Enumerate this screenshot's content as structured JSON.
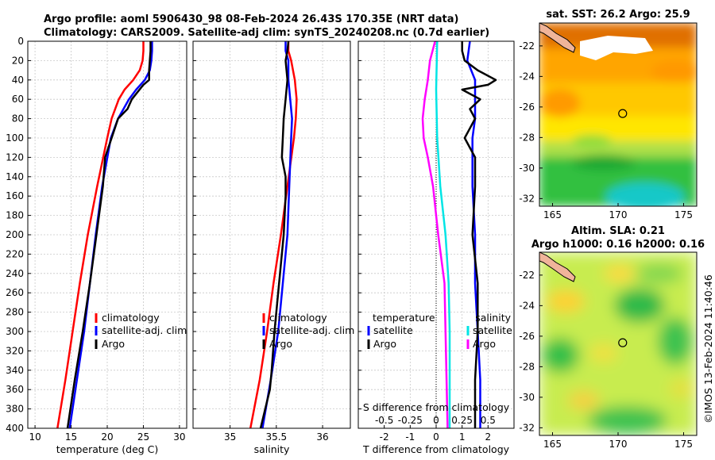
{
  "header": {
    "line1": "Argo profile: aoml 5906430_98 08-Feb-2024 26.43S 170.35E (NRT data)",
    "line2": "Climatology: CARS2009. Satellite-adj clim: synTS_20240208.nc (0.7d earlier)"
  },
  "colors": {
    "climatology": "#ff0000",
    "satellite": "#0000ff",
    "argo": "#000000",
    "cyan": "#00e5e5",
    "magenta": "#ff00ff"
  },
  "chart_data": [
    {
      "type": "line",
      "id": "temperature",
      "xlabel": "temperature (deg C)",
      "ylabel": "",
      "xlim": [
        9,
        31
      ],
      "ylim": [
        400,
        0
      ],
      "xticks": [
        10,
        15,
        20,
        25,
        30
      ],
      "yticks": [
        0,
        20,
        40,
        60,
        80,
        100,
        120,
        140,
        160,
        180,
        200,
        220,
        240,
        260,
        280,
        300,
        320,
        340,
        360,
        380,
        400
      ],
      "legend": [
        "climatology",
        "satellite-adj. clim",
        "Argo"
      ],
      "series": [
        {
          "name": "climatology",
          "color": "#ff0000",
          "depth": [
            0,
            10,
            20,
            30,
            40,
            50,
            60,
            80,
            100,
            150,
            200,
            250,
            300,
            350,
            400
          ],
          "values": [
            25,
            25,
            24.9,
            24.5,
            23.6,
            22.4,
            21.6,
            20.6,
            20,
            18.6,
            17.3,
            16.2,
            15.2,
            14.2,
            13.1
          ]
        },
        {
          "name": "satellite-adj. clim",
          "color": "#0000ff",
          "depth": [
            0,
            10,
            20,
            30,
            40,
            50,
            60,
            80,
            100,
            150,
            200,
            250,
            300,
            350,
            400
          ],
          "values": [
            26.2,
            26.2,
            26.1,
            25.9,
            25.2,
            24,
            23,
            21.5,
            20.5,
            19.3,
            18.4,
            17.6,
            16.8,
            15.8,
            14.8
          ]
        },
        {
          "name": "Argo",
          "color": "#000000",
          "depth": [
            0,
            10,
            20,
            30,
            40,
            45,
            60,
            70,
            80,
            100,
            120,
            150,
            200,
            250,
            300,
            350,
            400
          ],
          "values": [
            26,
            26,
            25.9,
            25.8,
            25.8,
            25,
            23.4,
            22.8,
            21.5,
            20.6,
            19.7,
            19.4,
            18.5,
            17.6,
            16.6,
            15.5,
            14.5
          ]
        }
      ]
    },
    {
      "type": "line",
      "id": "salinity",
      "xlabel": "salinity",
      "ylabel": "",
      "xlim": [
        34.6,
        36.3
      ],
      "ylim": [
        400,
        0
      ],
      "xticks": [
        35,
        35.5,
        36
      ],
      "legend": [
        "climatology",
        "satellite-adj. clim",
        "Argo"
      ],
      "series": [
        {
          "name": "climatology",
          "color": "#ff0000",
          "depth": [
            0,
            10,
            20,
            40,
            60,
            80,
            100,
            150,
            200,
            250,
            300,
            350,
            400
          ],
          "values": [
            35.63,
            35.63,
            35.66,
            35.7,
            35.72,
            35.71,
            35.69,
            35.62,
            35.55,
            35.47,
            35.4,
            35.32,
            35.22
          ]
        },
        {
          "name": "satellite-adj. clim",
          "color": "#0000ff",
          "depth": [
            0,
            10,
            20,
            40,
            60,
            80,
            100,
            150,
            200,
            250,
            300,
            350,
            400
          ],
          "values": [
            35.6,
            35.6,
            35.63,
            35.63,
            35.65,
            35.67,
            35.66,
            35.64,
            35.62,
            35.57,
            35.52,
            35.44,
            35.35
          ]
        },
        {
          "name": "Argo",
          "color": "#000000",
          "depth": [
            0,
            10,
            20,
            40,
            60,
            80,
            100,
            120,
            140,
            160,
            200,
            250,
            300,
            340,
            360,
            400
          ],
          "values": [
            35.63,
            35.62,
            35.6,
            35.62,
            35.6,
            35.58,
            35.57,
            35.56,
            35.6,
            35.6,
            35.58,
            35.53,
            35.48,
            35.45,
            35.43,
            35.33
          ]
        }
      ]
    },
    {
      "type": "line",
      "id": "differences",
      "xlabel": "T difference from climatology",
      "xlabel_top": "S difference from climatology",
      "xlim": [
        -3,
        3
      ],
      "ylim": [
        400,
        0
      ],
      "xticks": [
        -2,
        -1,
        0,
        1,
        2
      ],
      "xticks_top": [
        -0.5,
        -0.25,
        0,
        0.25,
        0.5
      ],
      "legend_left_title": "temperature",
      "legend_right_title": "salinity",
      "legend_left": [
        "satellite",
        "Argo"
      ],
      "legend_right": [
        "satellite",
        "Argo"
      ],
      "series": [
        {
          "name": "T satellite",
          "color": "#0000ff",
          "depth": [
            0,
            20,
            40,
            60,
            80,
            100,
            150,
            200,
            250,
            300,
            350,
            400
          ],
          "values": [
            1.3,
            1.2,
            1.5,
            1.5,
            1.5,
            1.4,
            1.4,
            1.5,
            1.5,
            1.6,
            1.7,
            1.7
          ]
        },
        {
          "name": "T Argo",
          "color": "#000000",
          "depth": [
            0,
            10,
            20,
            30,
            40,
            45,
            50,
            60,
            70,
            80,
            90,
            100,
            120,
            150,
            200,
            250,
            300,
            350,
            400
          ],
          "values": [
            1,
            1,
            1.1,
            1.6,
            2.3,
            2,
            1,
            1.7,
            1.3,
            1.5,
            1.3,
            1.1,
            1.5,
            1.5,
            1.4,
            1.6,
            1.6,
            1.5,
            1.5
          ]
        },
        {
          "name": "S satellite",
          "color": "#00e5e5",
          "depth": [
            0,
            50,
            100,
            150,
            200,
            250,
            300,
            350,
            400
          ],
          "values": [
            0.01,
            0,
            0.01,
            0.04,
            0.09,
            0.12,
            0.13,
            0.13,
            0.13
          ]
        },
        {
          "name": "S Argo",
          "color": "#ff00ff",
          "depth": [
            0,
            20,
            40,
            60,
            80,
            100,
            120,
            150,
            200,
            250,
            300,
            350,
            400
          ],
          "values": [
            -0.01,
            -0.06,
            -0.08,
            -0.11,
            -0.13,
            -0.12,
            -0.08,
            -0.03,
            0.02,
            0.08,
            0.09,
            0.1,
            0.11
          ]
        }
      ]
    },
    {
      "type": "heatmap",
      "id": "sst_map",
      "title": "sat. SST: 26.2 Argo: 25.9",
      "xticks": [
        165,
        170,
        175
      ],
      "yticks": [
        -22,
        -24,
        -26,
        -28,
        -30,
        -32
      ],
      "xlim": [
        164,
        176
      ],
      "ylim": [
        -32.5,
        -20.5
      ],
      "marker": {
        "lon": 170.35,
        "lat": -26.43
      }
    },
    {
      "type": "heatmap",
      "id": "sla_map",
      "title": "Altim. SLA: 0.21",
      "subtitle": "Argo h1000: 0.16 h2000: 0.16",
      "xticks": [
        165,
        170,
        175
      ],
      "yticks": [
        -22,
        -24,
        -26,
        -28,
        -30,
        -32
      ],
      "xlim": [
        164,
        176
      ],
      "ylim": [
        -32.5,
        -20.5
      ],
      "marker": {
        "lon": 170.35,
        "lat": -26.43
      }
    }
  ],
  "footer": {
    "credit": "©IMOS 13-Feb-2024 11:40:46"
  }
}
